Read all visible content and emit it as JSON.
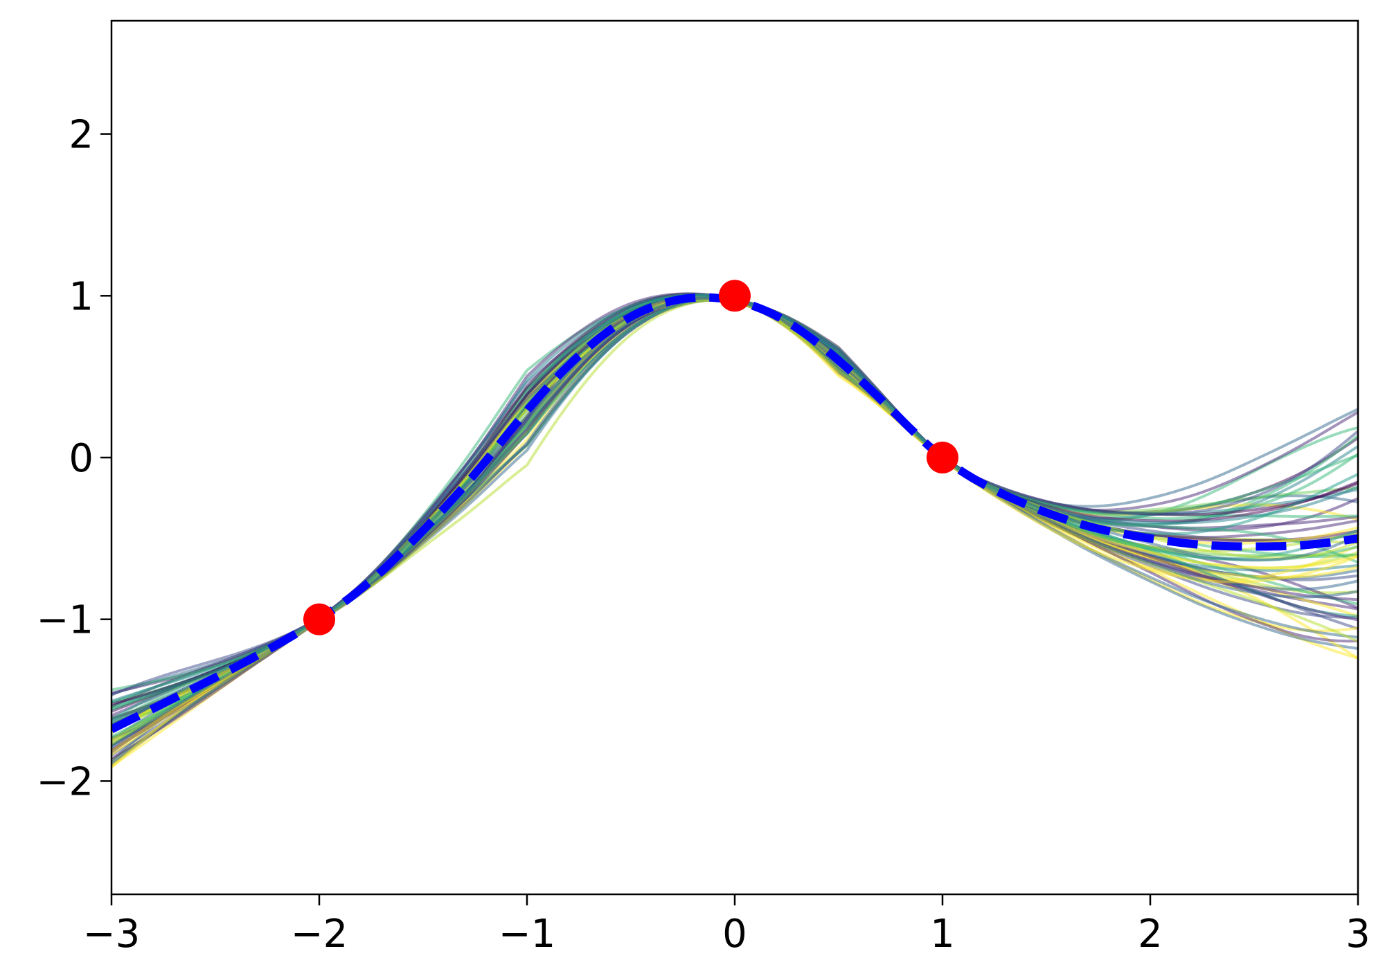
{
  "chart_data": {
    "type": "line",
    "title": "",
    "xlabel": "",
    "ylabel": "",
    "xlim": [
      -3,
      3
    ],
    "ylim": [
      -2.7,
      2.7
    ],
    "xticks": [
      -3,
      -2,
      -1,
      0,
      1,
      2,
      3
    ],
    "yticks": [
      -2,
      -1,
      0,
      1,
      2
    ],
    "xtick_labels": [
      "−3",
      "−2",
      "−1",
      "0",
      "1",
      "2",
      "3"
    ],
    "ytick_labels": [
      "−2",
      "−1",
      "0",
      "1",
      "2"
    ],
    "grid": false,
    "legend": "none",
    "observations": {
      "x": [
        -2,
        0,
        1
      ],
      "y": [
        -1,
        1,
        0
      ],
      "color": "#ff0000"
    },
    "mean": {
      "x": [
        -3,
        -2.75,
        -2.5,
        -2.25,
        -2,
        -1.75,
        -1.5,
        -1.25,
        -1,
        -0.75,
        -0.5,
        -0.25,
        0,
        0.25,
        0.5,
        0.75,
        1,
        1.25,
        1.5,
        1.75,
        2,
        2.25,
        2.5,
        2.75,
        3
      ],
      "y": [
        -1.68,
        -1.52,
        -1.36,
        -1.19,
        -1.0,
        -0.76,
        -0.45,
        -0.1,
        0.29,
        0.63,
        0.87,
        0.98,
        0.97,
        0.84,
        0.6,
        0.3,
        0.0,
        -0.2,
        -0.34,
        -0.44,
        -0.5,
        -0.54,
        -0.55,
        -0.54,
        -0.5
      ],
      "color": "#0000ff",
      "style": "dashed"
    },
    "samples": {
      "count": 60,
      "colormap": "viridis",
      "spread_left_at_x_minus3": [
        -1.98,
        -1.45
      ],
      "spread_right_at_x3": [
        -1.1,
        0.0
      ]
    },
    "colors": {
      "background": "#ffffff",
      "axes": "#000000",
      "observation": "#ff0000",
      "mean": "#0000ff"
    }
  }
}
